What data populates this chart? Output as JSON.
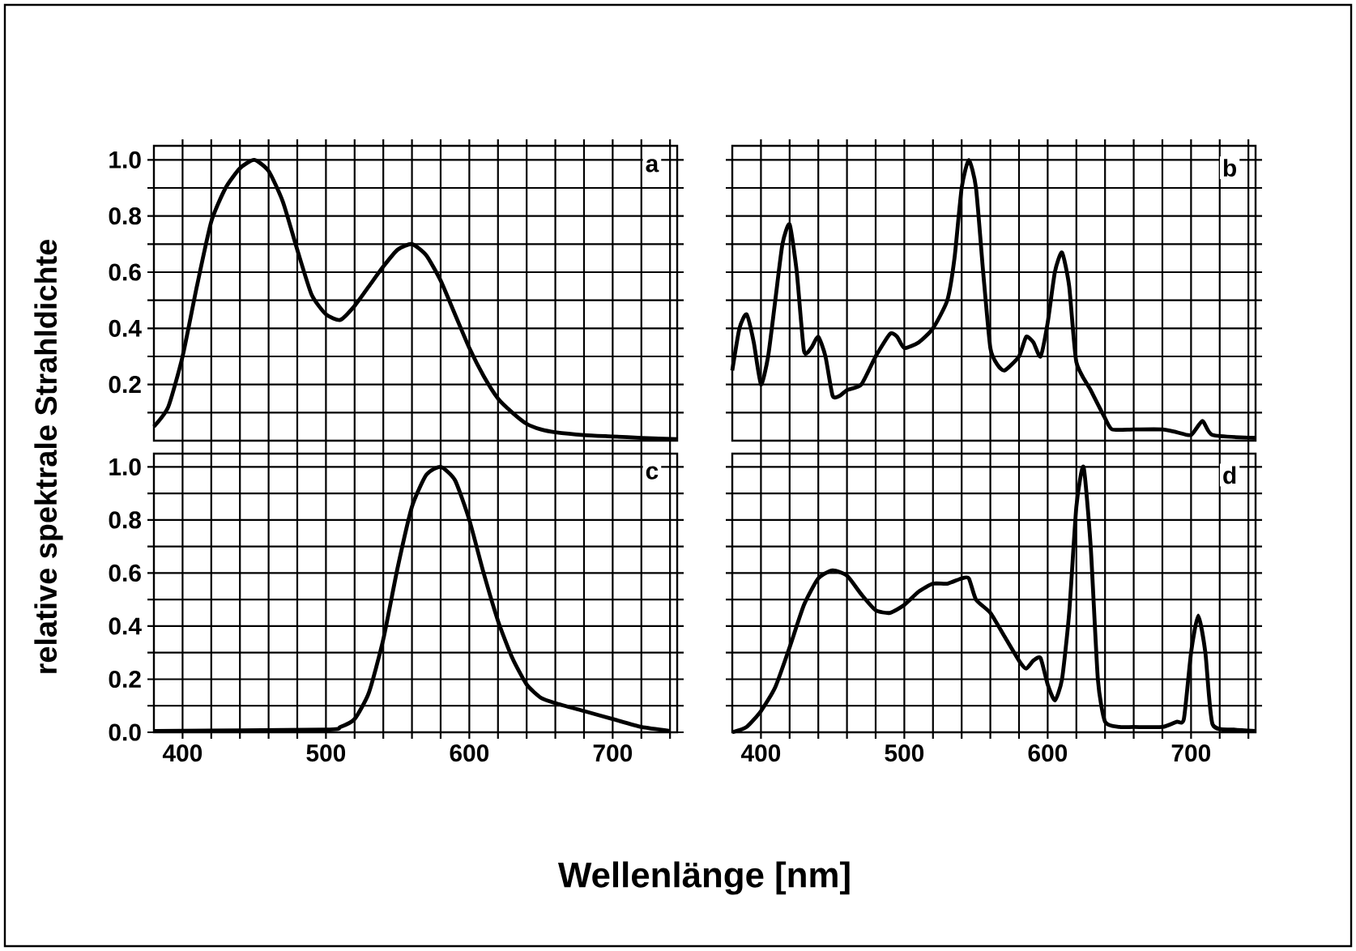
{
  "chart_data": [
    {
      "type": "line",
      "ylabel": "relative spektrale Strahldichte",
      "annotations": [
        "a"
      ],
      "x": [
        380,
        390,
        400,
        410,
        420,
        430,
        440,
        450,
        460,
        470,
        480,
        490,
        500,
        510,
        520,
        530,
        540,
        550,
        560,
        570,
        580,
        590,
        600,
        610,
        620,
        630,
        640,
        650,
        660,
        680,
        700,
        720,
        745
      ],
      "series": [
        {
          "color": "#000000",
          "values": [
            0.05,
            0.12,
            0.3,
            0.55,
            0.78,
            0.9,
            0.97,
            1.0,
            0.96,
            0.85,
            0.68,
            0.52,
            0.45,
            0.43,
            0.48,
            0.55,
            0.62,
            0.68,
            0.7,
            0.66,
            0.57,
            0.45,
            0.33,
            0.23,
            0.15,
            0.1,
            0.06,
            0.04,
            0.03,
            0.02,
            0.015,
            0.01,
            0.005
          ]
        }
      ],
      "xlim": [
        380,
        745
      ],
      "ylim": [
        0,
        1.05
      ],
      "xticks": [
        {
          "value": 400,
          "label": null
        },
        {
          "value": 420,
          "label": null
        },
        {
          "value": 440,
          "label": null
        },
        {
          "value": 460,
          "label": null
        },
        {
          "value": 480,
          "label": null
        },
        {
          "value": 500,
          "label": null
        },
        {
          "value": 520,
          "label": null
        },
        {
          "value": 540,
          "label": null
        },
        {
          "value": 560,
          "label": null
        },
        {
          "value": 580,
          "label": null
        },
        {
          "value": 600,
          "label": null
        },
        {
          "value": 620,
          "label": null
        },
        {
          "value": 640,
          "label": null
        },
        {
          "value": 660,
          "label": null
        },
        {
          "value": 680,
          "label": null
        },
        {
          "value": 700,
          "label": null
        },
        {
          "value": 720,
          "label": null
        },
        {
          "value": 740,
          "label": null
        }
      ],
      "yticks": [
        {
          "value": 0.1,
          "label": null
        },
        {
          "value": 0.2,
          "label": "0.2"
        },
        {
          "value": 0.3,
          "label": null
        },
        {
          "value": 0.4,
          "label": "0.4"
        },
        {
          "value": 0.5,
          "label": null
        },
        {
          "value": 0.6,
          "label": "0.6"
        },
        {
          "value": 0.7,
          "label": null
        },
        {
          "value": 0.8,
          "label": "0.8"
        },
        {
          "value": 0.9,
          "label": null
        },
        {
          "value": 1.0,
          "label": "1.0"
        }
      ],
      "tick_labels": "y",
      "grid": true
    },
    {
      "type": "line",
      "annotations": [
        "b"
      ],
      "x": [
        380,
        385,
        390,
        395,
        400,
        405,
        410,
        415,
        420,
        425,
        430,
        435,
        440,
        445,
        450,
        455,
        460,
        470,
        480,
        490,
        495,
        500,
        510,
        520,
        530,
        535,
        540,
        545,
        550,
        555,
        560,
        565,
        570,
        580,
        585,
        590,
        595,
        600,
        605,
        610,
        615,
        620,
        630,
        640,
        645,
        660,
        680,
        690,
        700,
        708,
        715,
        745
      ],
      "series": [
        {
          "color": "#000000",
          "values": [
            0.25,
            0.4,
            0.45,
            0.35,
            0.2,
            0.3,
            0.5,
            0.7,
            0.77,
            0.6,
            0.32,
            0.33,
            0.37,
            0.3,
            0.16,
            0.16,
            0.18,
            0.2,
            0.3,
            0.38,
            0.37,
            0.33,
            0.35,
            0.4,
            0.5,
            0.65,
            0.9,
            1.0,
            0.9,
            0.6,
            0.33,
            0.27,
            0.25,
            0.3,
            0.37,
            0.35,
            0.3,
            0.42,
            0.6,
            0.67,
            0.55,
            0.28,
            0.18,
            0.08,
            0.04,
            0.04,
            0.04,
            0.03,
            0.02,
            0.07,
            0.02,
            0.01
          ]
        }
      ],
      "xlim": [
        380,
        745
      ],
      "ylim": [
        0,
        1.05
      ],
      "xticks": [
        {
          "value": 400,
          "label": null
        },
        {
          "value": 420,
          "label": null
        },
        {
          "value": 440,
          "label": null
        },
        {
          "value": 460,
          "label": null
        },
        {
          "value": 480,
          "label": null
        },
        {
          "value": 500,
          "label": null
        },
        {
          "value": 520,
          "label": null
        },
        {
          "value": 540,
          "label": null
        },
        {
          "value": 560,
          "label": null
        },
        {
          "value": 580,
          "label": null
        },
        {
          "value": 600,
          "label": null
        },
        {
          "value": 620,
          "label": null
        },
        {
          "value": 640,
          "label": null
        },
        {
          "value": 660,
          "label": null
        },
        {
          "value": 680,
          "label": null
        },
        {
          "value": 700,
          "label": null
        },
        {
          "value": 720,
          "label": null
        },
        {
          "value": 740,
          "label": null
        }
      ],
      "yticks": [
        {
          "value": 0.1,
          "label": null
        },
        {
          "value": 0.2,
          "label": null
        },
        {
          "value": 0.3,
          "label": null
        },
        {
          "value": 0.4,
          "label": null
        },
        {
          "value": 0.5,
          "label": null
        },
        {
          "value": 0.6,
          "label": null
        },
        {
          "value": 0.7,
          "label": null
        },
        {
          "value": 0.8,
          "label": null
        },
        {
          "value": 0.9,
          "label": null
        },
        {
          "value": 1.0,
          "label": null
        }
      ],
      "tick_labels": false,
      "grid": true
    },
    {
      "type": "line",
      "annotations": [
        "c"
      ],
      "x": [
        380,
        500,
        510,
        520,
        530,
        540,
        550,
        560,
        570,
        580,
        590,
        600,
        610,
        620,
        630,
        640,
        650,
        660,
        680,
        700,
        720,
        740
      ],
      "series": [
        {
          "color": "#000000",
          "values": [
            0.005,
            0.01,
            0.02,
            0.05,
            0.15,
            0.35,
            0.62,
            0.85,
            0.97,
            1.0,
            0.95,
            0.8,
            0.6,
            0.42,
            0.28,
            0.18,
            0.13,
            0.11,
            0.08,
            0.05,
            0.02,
            0.005
          ]
        }
      ],
      "xlim": [
        380,
        745
      ],
      "ylim": [
        0,
        1.05
      ],
      "xticks": [
        {
          "value": 400,
          "label": "400"
        },
        {
          "value": 420,
          "label": null
        },
        {
          "value": 440,
          "label": null
        },
        {
          "value": 460,
          "label": null
        },
        {
          "value": 480,
          "label": null
        },
        {
          "value": 500,
          "label": "500"
        },
        {
          "value": 520,
          "label": null
        },
        {
          "value": 540,
          "label": null
        },
        {
          "value": 560,
          "label": null
        },
        {
          "value": 580,
          "label": null
        },
        {
          "value": 600,
          "label": "600"
        },
        {
          "value": 620,
          "label": null
        },
        {
          "value": 640,
          "label": null
        },
        {
          "value": 660,
          "label": null
        },
        {
          "value": 680,
          "label": null
        },
        {
          "value": 700,
          "label": "700"
        },
        {
          "value": 720,
          "label": null
        },
        {
          "value": 740,
          "label": null
        }
      ],
      "yticks": [
        {
          "value": 0.0,
          "label": "0.0"
        },
        {
          "value": 0.1,
          "label": null
        },
        {
          "value": 0.2,
          "label": "0.2"
        },
        {
          "value": 0.3,
          "label": null
        },
        {
          "value": 0.4,
          "label": "0.4"
        },
        {
          "value": 0.5,
          "label": null
        },
        {
          "value": 0.6,
          "label": "0.6"
        },
        {
          "value": 0.7,
          "label": null
        },
        {
          "value": 0.8,
          "label": "0.8"
        },
        {
          "value": 0.9,
          "label": null
        },
        {
          "value": 1.0,
          "label": "1.0"
        }
      ],
      "grid": true
    },
    {
      "type": "line",
      "xlabel": "Wellenlänge [nm]",
      "annotations": [
        "d"
      ],
      "x": [
        380,
        390,
        400,
        410,
        420,
        430,
        440,
        450,
        460,
        470,
        480,
        490,
        500,
        510,
        520,
        530,
        540,
        545,
        550,
        560,
        570,
        580,
        585,
        590,
        595,
        600,
        605,
        610,
        615,
        620,
        625,
        630,
        635,
        640,
        650,
        660,
        680,
        690,
        695,
        700,
        705,
        710,
        715,
        730,
        745
      ],
      "series": [
        {
          "color": "#000000",
          "values": [
            0.0,
            0.02,
            0.08,
            0.17,
            0.32,
            0.48,
            0.58,
            0.61,
            0.59,
            0.52,
            0.46,
            0.45,
            0.48,
            0.53,
            0.56,
            0.56,
            0.58,
            0.58,
            0.5,
            0.45,
            0.36,
            0.27,
            0.24,
            0.27,
            0.28,
            0.18,
            0.12,
            0.2,
            0.45,
            0.85,
            1.0,
            0.7,
            0.2,
            0.04,
            0.02,
            0.02,
            0.02,
            0.04,
            0.05,
            0.3,
            0.44,
            0.3,
            0.03,
            0.01,
            0.005
          ]
        }
      ],
      "xlim": [
        380,
        745
      ],
      "ylim": [
        0,
        1.05
      ],
      "xticks": [
        {
          "value": 400,
          "label": "400"
        },
        {
          "value": 420,
          "label": null
        },
        {
          "value": 440,
          "label": null
        },
        {
          "value": 460,
          "label": null
        },
        {
          "value": 480,
          "label": null
        },
        {
          "value": 500,
          "label": "500"
        },
        {
          "value": 520,
          "label": null
        },
        {
          "value": 540,
          "label": null
        },
        {
          "value": 560,
          "label": null
        },
        {
          "value": 580,
          "label": null
        },
        {
          "value": 600,
          "label": "600"
        },
        {
          "value": 620,
          "label": null
        },
        {
          "value": 640,
          "label": null
        },
        {
          "value": 660,
          "label": null
        },
        {
          "value": 680,
          "label": null
        },
        {
          "value": 700,
          "label": "700"
        },
        {
          "value": 720,
          "label": null
        },
        {
          "value": 740,
          "label": null
        }
      ],
      "yticks": [
        {
          "value": 0.1,
          "label": null
        },
        {
          "value": 0.2,
          "label": null
        },
        {
          "value": 0.3,
          "label": null
        },
        {
          "value": 0.4,
          "label": null
        },
        {
          "value": 0.5,
          "label": null
        },
        {
          "value": 0.6,
          "label": null
        },
        {
          "value": 0.7,
          "label": null
        },
        {
          "value": 0.8,
          "label": null
        },
        {
          "value": 0.9,
          "label": null
        },
        {
          "value": 1.0,
          "label": null
        }
      ],
      "tick_labels": "x",
      "grid": true
    }
  ]
}
